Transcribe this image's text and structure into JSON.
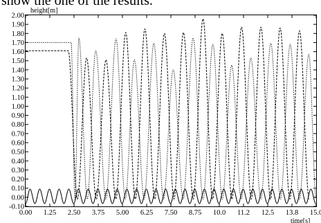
{
  "caption": "show the one of the results.",
  "chart_data": {
    "type": "line",
    "xlabel": "time[s]",
    "ylabel": "height[m]",
    "xlim": [
      0,
      15.0
    ],
    "ylim": [
      -0.1,
      2.0
    ],
    "x_ticks": [
      "0.00",
      "1.25",
      "2.50",
      "3.75",
      "5.00",
      "6.25",
      "7.50",
      "8.75",
      "10.0",
      "11.2",
      "12.5",
      "13.8",
      "15.0"
    ],
    "y_ticks": [
      "-0.10",
      "0.00",
      "0.10",
      "0.20",
      "0.30",
      "0.40",
      "0.50",
      "0.60",
      "0.70",
      "0.80",
      "0.90",
      "1.00",
      "1.10",
      "1.20",
      "1.30",
      "1.40",
      "1.50",
      "1.60",
      "1.70",
      "1.80",
      "1.90",
      "2.00"
    ],
    "grid": false,
    "series": [
      {
        "style": "solid",
        "x": [
          0.23,
          0.73,
          1.23,
          1.73,
          2.23,
          2.73,
          3.23,
          3.73,
          4.23,
          4.73,
          5.23,
          5.73,
          6.23,
          6.73,
          7.23,
          7.73,
          8.23,
          8.73,
          9.23,
          9.73,
          10.23,
          10.73,
          11.23,
          11.73,
          12.23,
          12.73,
          13.23,
          13.73,
          14.23,
          14.73
        ],
        "y": [
          0.09,
          0.09,
          0.09,
          0.09,
          0.09,
          0.09,
          0.09,
          0.09,
          0.09,
          0.09,
          0.09,
          0.09,
          0.09,
          0.09,
          0.09,
          0.09,
          0.09,
          0.09,
          0.09,
          0.09,
          0.09,
          0.09,
          0.09,
          0.09,
          0.09,
          0.09,
          0.09,
          0.09,
          0.09,
          0.09
        ],
        "baseline": -0.07
      },
      {
        "style": "dotted",
        "plateau": {
          "x": [
            0,
            2.35
          ],
          "y": 1.7
        },
        "x": [
          2.75,
          3.62,
          4.67,
          5.62,
          6.62,
          7.62,
          8.65,
          9.67,
          10.64,
          11.63,
          12.66,
          13.66,
          14.62
        ],
        "y": [
          1.75,
          1.61,
          1.74,
          1.51,
          1.69,
          1.4,
          1.75,
          1.68,
          1.45,
          1.53,
          1.69,
          1.68,
          1.57
        ],
        "baseline": -0.02
      },
      {
        "style": "dashed",
        "plateau": {
          "x": [
            0,
            2.2
          ],
          "y": 1.61
        },
        "x": [
          3.15,
          4.15,
          5.17,
          6.16,
          7.17,
          8.15,
          9.16,
          10.15,
          11.15,
          12.15,
          13.14,
          14.14
        ],
        "y": [
          1.53,
          1.51,
          1.81,
          1.85,
          1.8,
          1.81,
          1.96,
          1.8,
          1.87,
          1.87,
          1.86,
          1.83
        ],
        "baseline": -0.02
      }
    ]
  }
}
